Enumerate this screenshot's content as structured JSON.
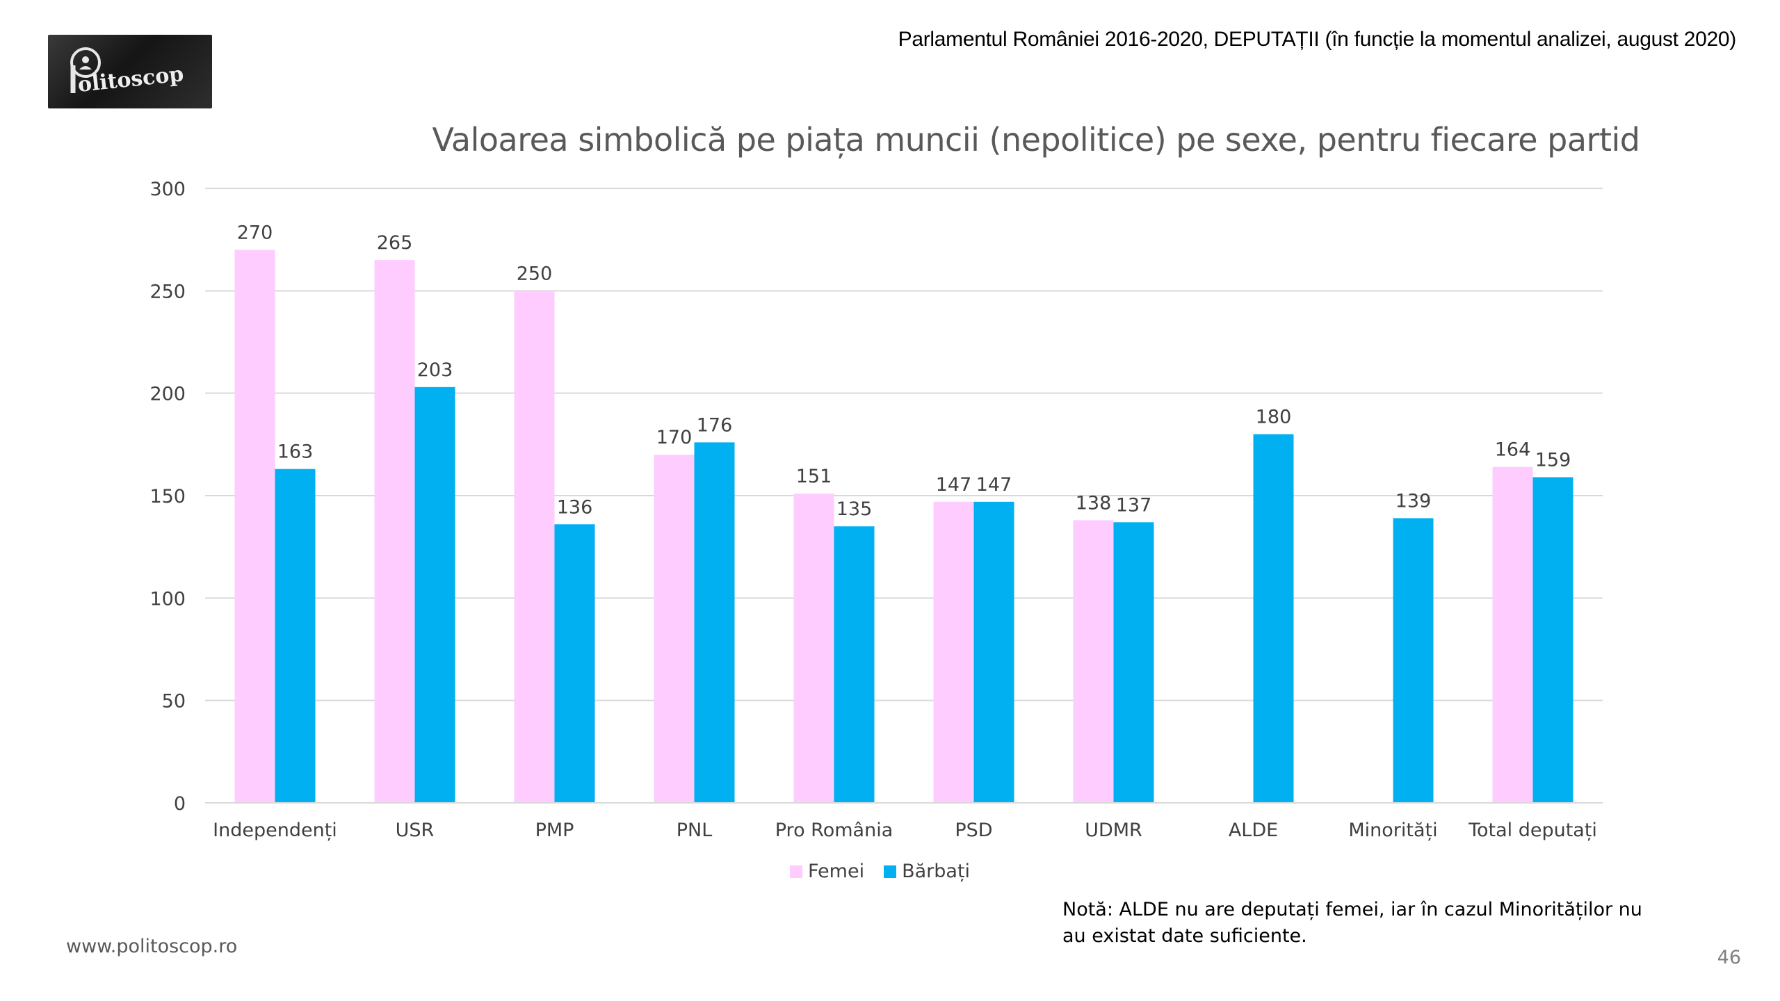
{
  "header": {
    "logo_text": "Politoscop",
    "title": "Parlamentul României 2016-2020, DEPUTAȚII (în funcție la momentul analizei, august 2020)"
  },
  "colors": {
    "femei": "#FFCCFF",
    "barbati": "#00B0F0",
    "grid": "#D9D9D9",
    "text": "#404040"
  },
  "chart_data": {
    "type": "bar",
    "title": "Valoarea simbolică pe piața muncii (nepolitice) pe sexe, pentru fiecare partid",
    "xlabel": "",
    "ylabel": "",
    "ylim": [
      0,
      300
    ],
    "yticks": [
      0,
      50,
      100,
      150,
      200,
      250,
      300
    ],
    "grid": true,
    "legend_position": "bottom",
    "categories": [
      "Independenți",
      "USR",
      "PMP",
      "PNL",
      "Pro România",
      "PSD",
      "UDMR",
      "ALDE",
      "Minorități",
      "Total deputați"
    ],
    "series": [
      {
        "name": "Femei",
        "values": [
          270,
          265,
          250,
          170,
          151,
          147,
          138,
          null,
          null,
          164
        ]
      },
      {
        "name": "Bărbați",
        "values": [
          163,
          203,
          136,
          176,
          135,
          147,
          137,
          180,
          139,
          159
        ]
      }
    ]
  },
  "legend": {
    "femei": "Femei",
    "barbati": "Bărbați"
  },
  "note": "Notă: ALDE nu are deputați femei, iar în cazul Minorităților nu au existat date suficiente.",
  "footer": {
    "url": "www.politoscop.ro",
    "page_number": "46"
  }
}
